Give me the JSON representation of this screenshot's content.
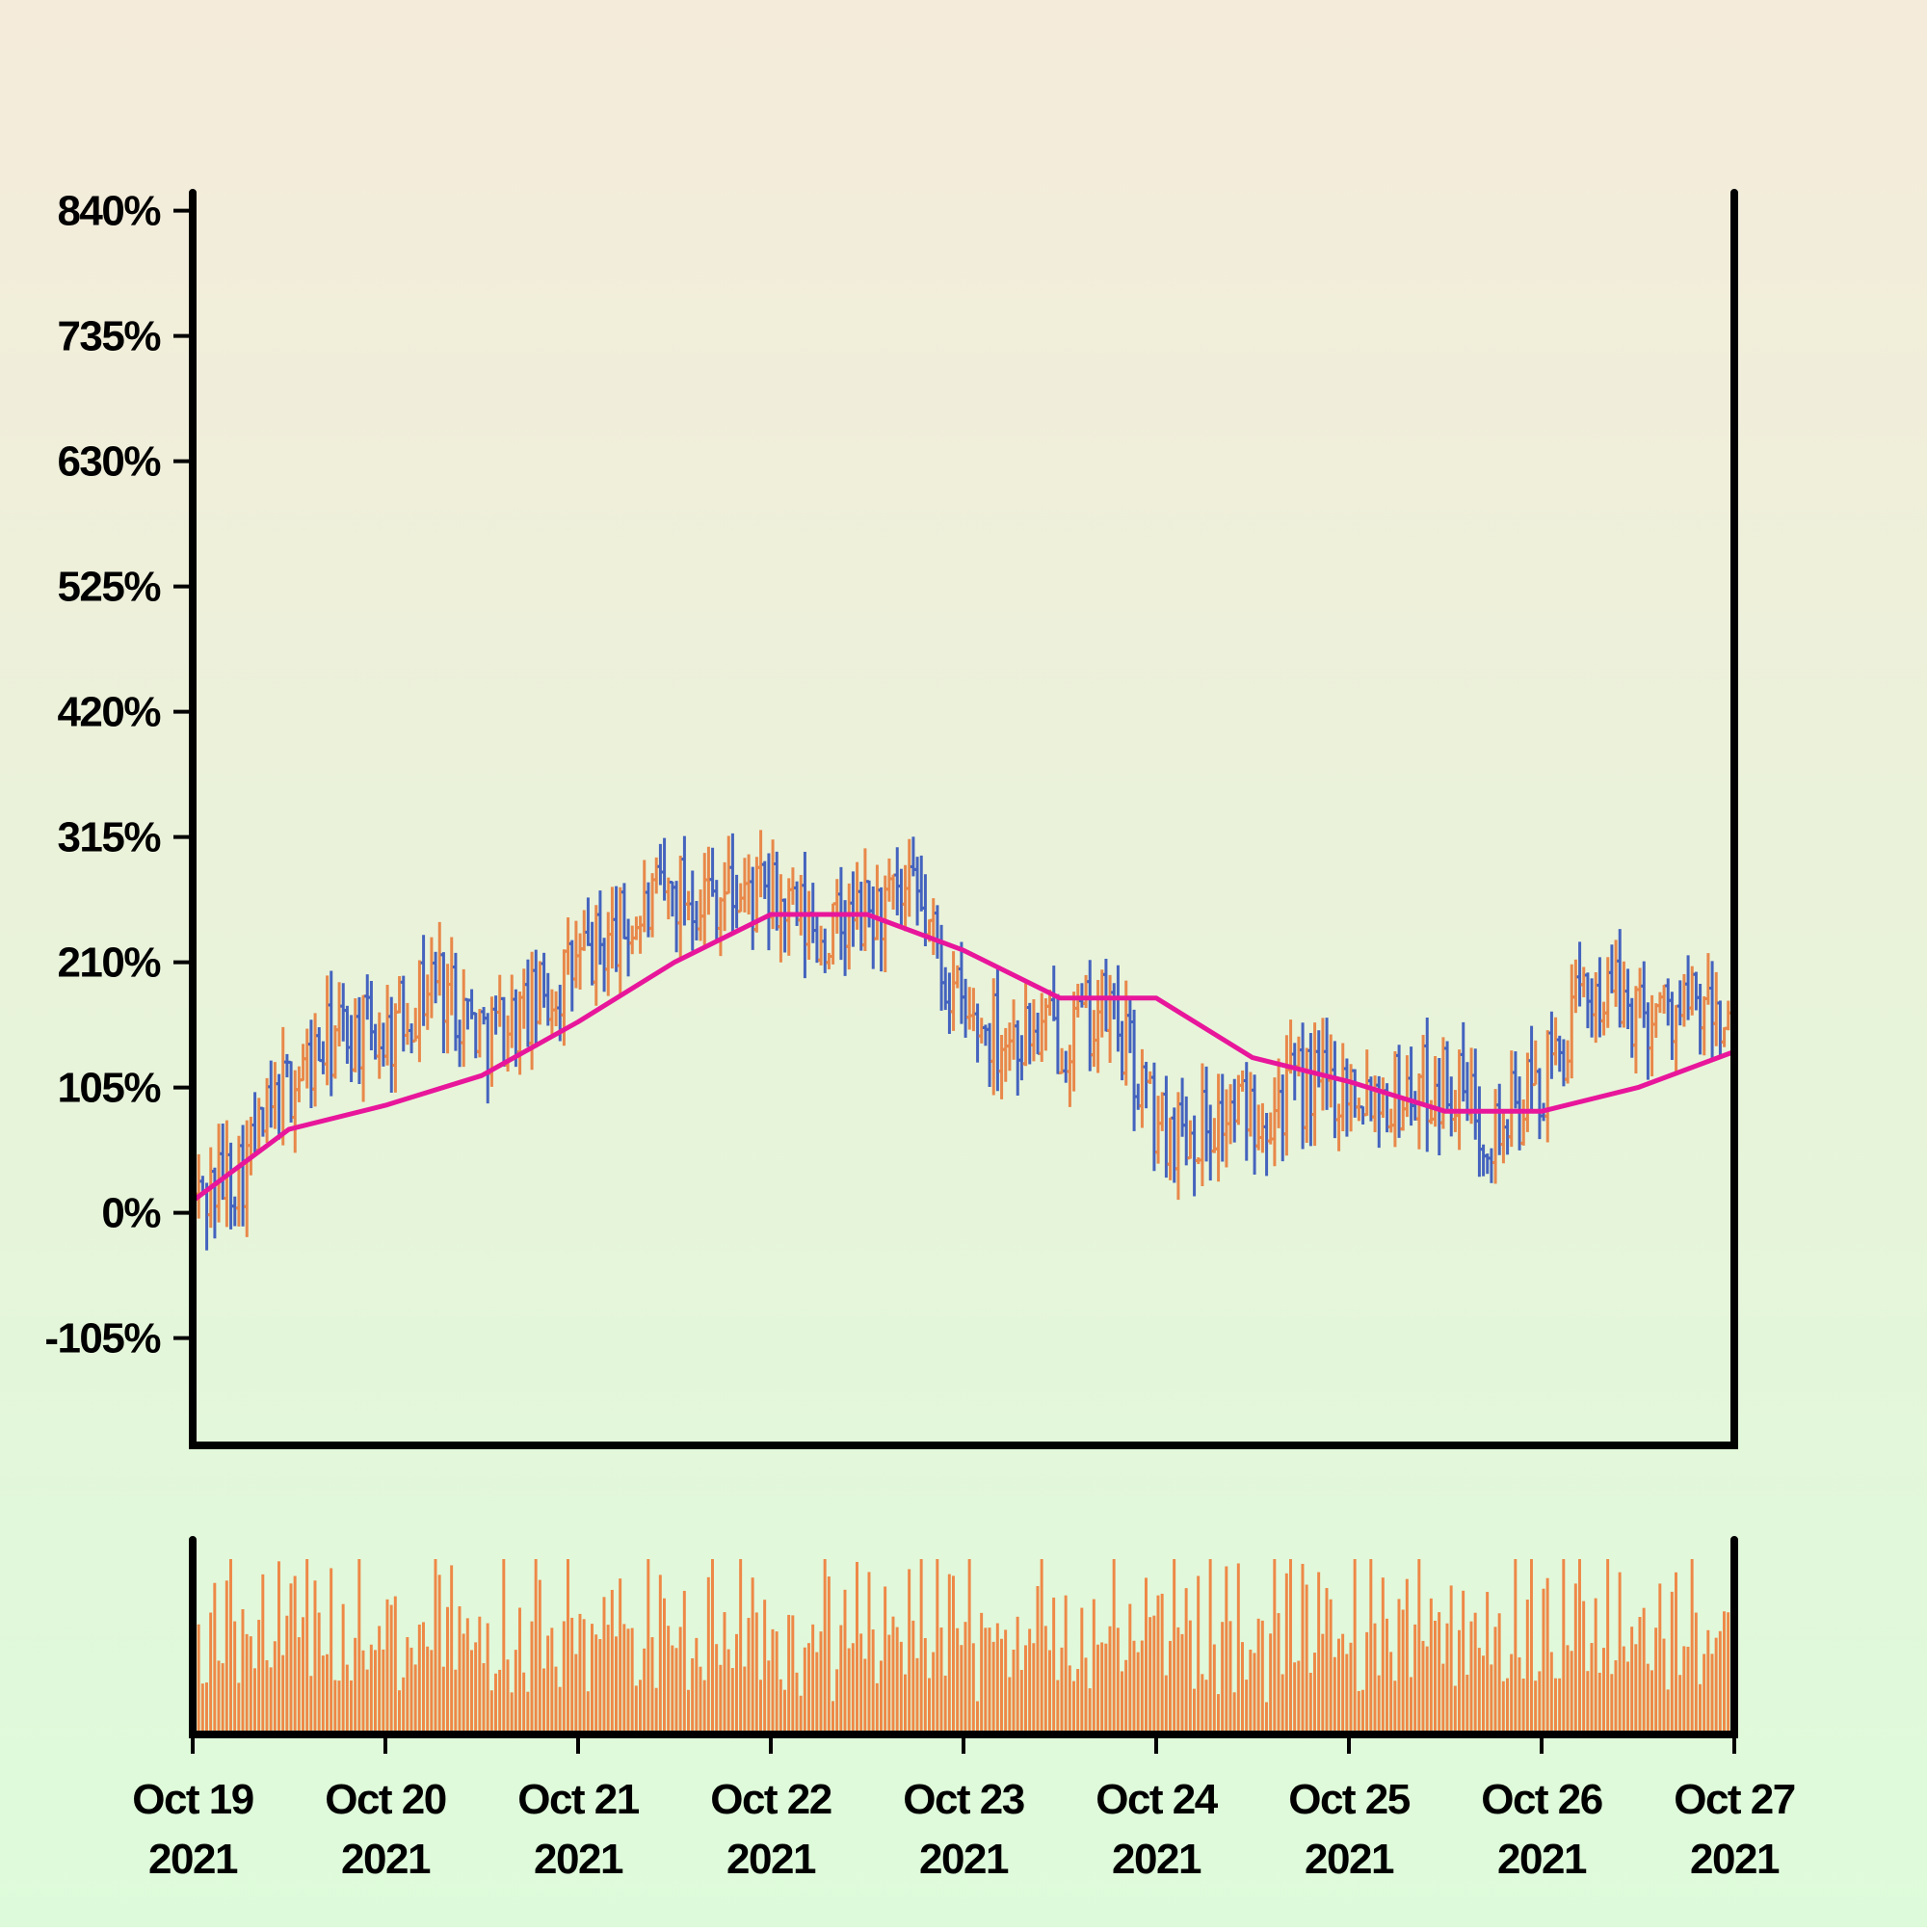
{
  "chart_data": {
    "type": "ohlc",
    "ylabel": "",
    "xlabel": "",
    "y_unit": "%",
    "y_ticks": [
      -105,
      0,
      105,
      210,
      315,
      420,
      525,
      630,
      735,
      840
    ],
    "y_tick_labels": [
      "-105%",
      "0%",
      "105%",
      "210%",
      "315%",
      "420%",
      "525%",
      "630%",
      "735%",
      "840%"
    ],
    "ylim": [
      -195,
      855
    ],
    "x_ticks": [
      "2021-10-19",
      "2021-10-20",
      "2021-10-21",
      "2021-10-22",
      "2021-10-23",
      "2021-10-24",
      "2021-10-25",
      "2021-10-26",
      "2021-10-27"
    ],
    "x_tick_labels": [
      [
        "Oct 19",
        "2021"
      ],
      [
        "Oct 20",
        "2021"
      ],
      [
        "Oct 21",
        "2021"
      ],
      [
        "Oct 22",
        "2021"
      ],
      [
        "Oct 23",
        "2021"
      ],
      [
        "Oct 24",
        "2021"
      ],
      [
        "Oct 25",
        "2021"
      ],
      [
        "Oct 26",
        "2021"
      ],
      [
        "Oct 27",
        "2021"
      ]
    ],
    "xlim": [
      "2021-10-19T00:00",
      "2021-10-27T00:00"
    ],
    "bar_interval": "30min",
    "grid": false,
    "legend": "none",
    "colors": {
      "up": "#E8884A",
      "down": "#4463BE",
      "moving_average": "#E8169B",
      "volume": "#EE8847",
      "axis": "#000000",
      "background_top": "#F5EBDA",
      "background_bottom": "#DDFBDA"
    },
    "series": [
      {
        "kind": "price_path_anchor_points",
        "x": [
          "2021-10-19T00:00",
          "2021-10-19T06:00",
          "2021-10-19T12:00",
          "2021-10-19T18:00",
          "2021-10-20T00:00",
          "2021-10-20T06:00",
          "2021-10-20T12:00",
          "2021-10-20T18:00",
          "2021-10-21T00:00",
          "2021-10-21T06:00",
          "2021-10-21T12:00",
          "2021-10-21T18:00",
          "2021-10-22T00:00",
          "2021-10-22T06:00",
          "2021-10-22T12:00",
          "2021-10-22T18:00",
          "2021-10-23T00:00",
          "2021-10-23T06:00",
          "2021-10-23T12:00",
          "2021-10-23T18:00",
          "2021-10-24T00:00",
          "2021-10-24T06:00",
          "2021-10-24T12:00",
          "2021-10-24T18:00",
          "2021-10-25T00:00",
          "2021-10-25T06:00",
          "2021-10-25T12:00",
          "2021-10-25T18:00",
          "2021-10-26T00:00",
          "2021-10-26T06:00",
          "2021-10-26T12:00",
          "2021-10-26T18:00",
          "2021-10-27T00:00"
        ],
        "y": [
          10,
          40,
          110,
          150,
          150,
          200,
          150,
          170,
          210,
          240,
          270,
          270,
          260,
          230,
          250,
          260,
          160,
          150,
          150,
          170,
          70,
          75,
          90,
          105,
          110,
          100,
          110,
          70,
          110,
          190,
          170,
          170,
          160
        ]
      },
      {
        "name": "",
        "kind": "moving_average",
        "x": [
          "2021-10-19T00:00",
          "2021-10-19T12:00",
          "2021-10-20T00:00",
          "2021-10-20T12:00",
          "2021-10-21T00:00",
          "2021-10-21T12:00",
          "2021-10-22T00:00",
          "2021-10-22T12:00",
          "2021-10-23T00:00",
          "2021-10-23T12:00",
          "2021-10-24T00:00",
          "2021-10-24T12:00",
          "2021-10-25T00:00",
          "2021-10-25T12:00",
          "2021-10-26T00:00",
          "2021-10-26T12:00",
          "2021-10-27T00:00"
        ],
        "y": [
          10,
          70,
          90,
          115,
          160,
          210,
          250,
          250,
          220,
          180,
          180,
          130,
          110,
          85,
          85,
          105,
          135
        ]
      }
    ],
    "volume": {
      "kind": "bar",
      "values_relative": [
        0.5,
        0.8,
        0.4,
        0.3,
        0.6,
        0.9,
        0.5,
        0.3,
        0.7,
        0.8,
        0.5,
        0.4,
        0.6,
        0.9,
        0.7,
        0.3,
        0.5,
        0.8,
        0.6,
        0.4,
        0.7,
        0.9,
        0.6,
        0.5,
        0.8,
        0.7,
        0.4,
        0.6,
        0.9,
        0.5,
        0.7,
        0.8,
        0.6,
        0.4,
        0.7,
        0.5
      ]
    }
  }
}
